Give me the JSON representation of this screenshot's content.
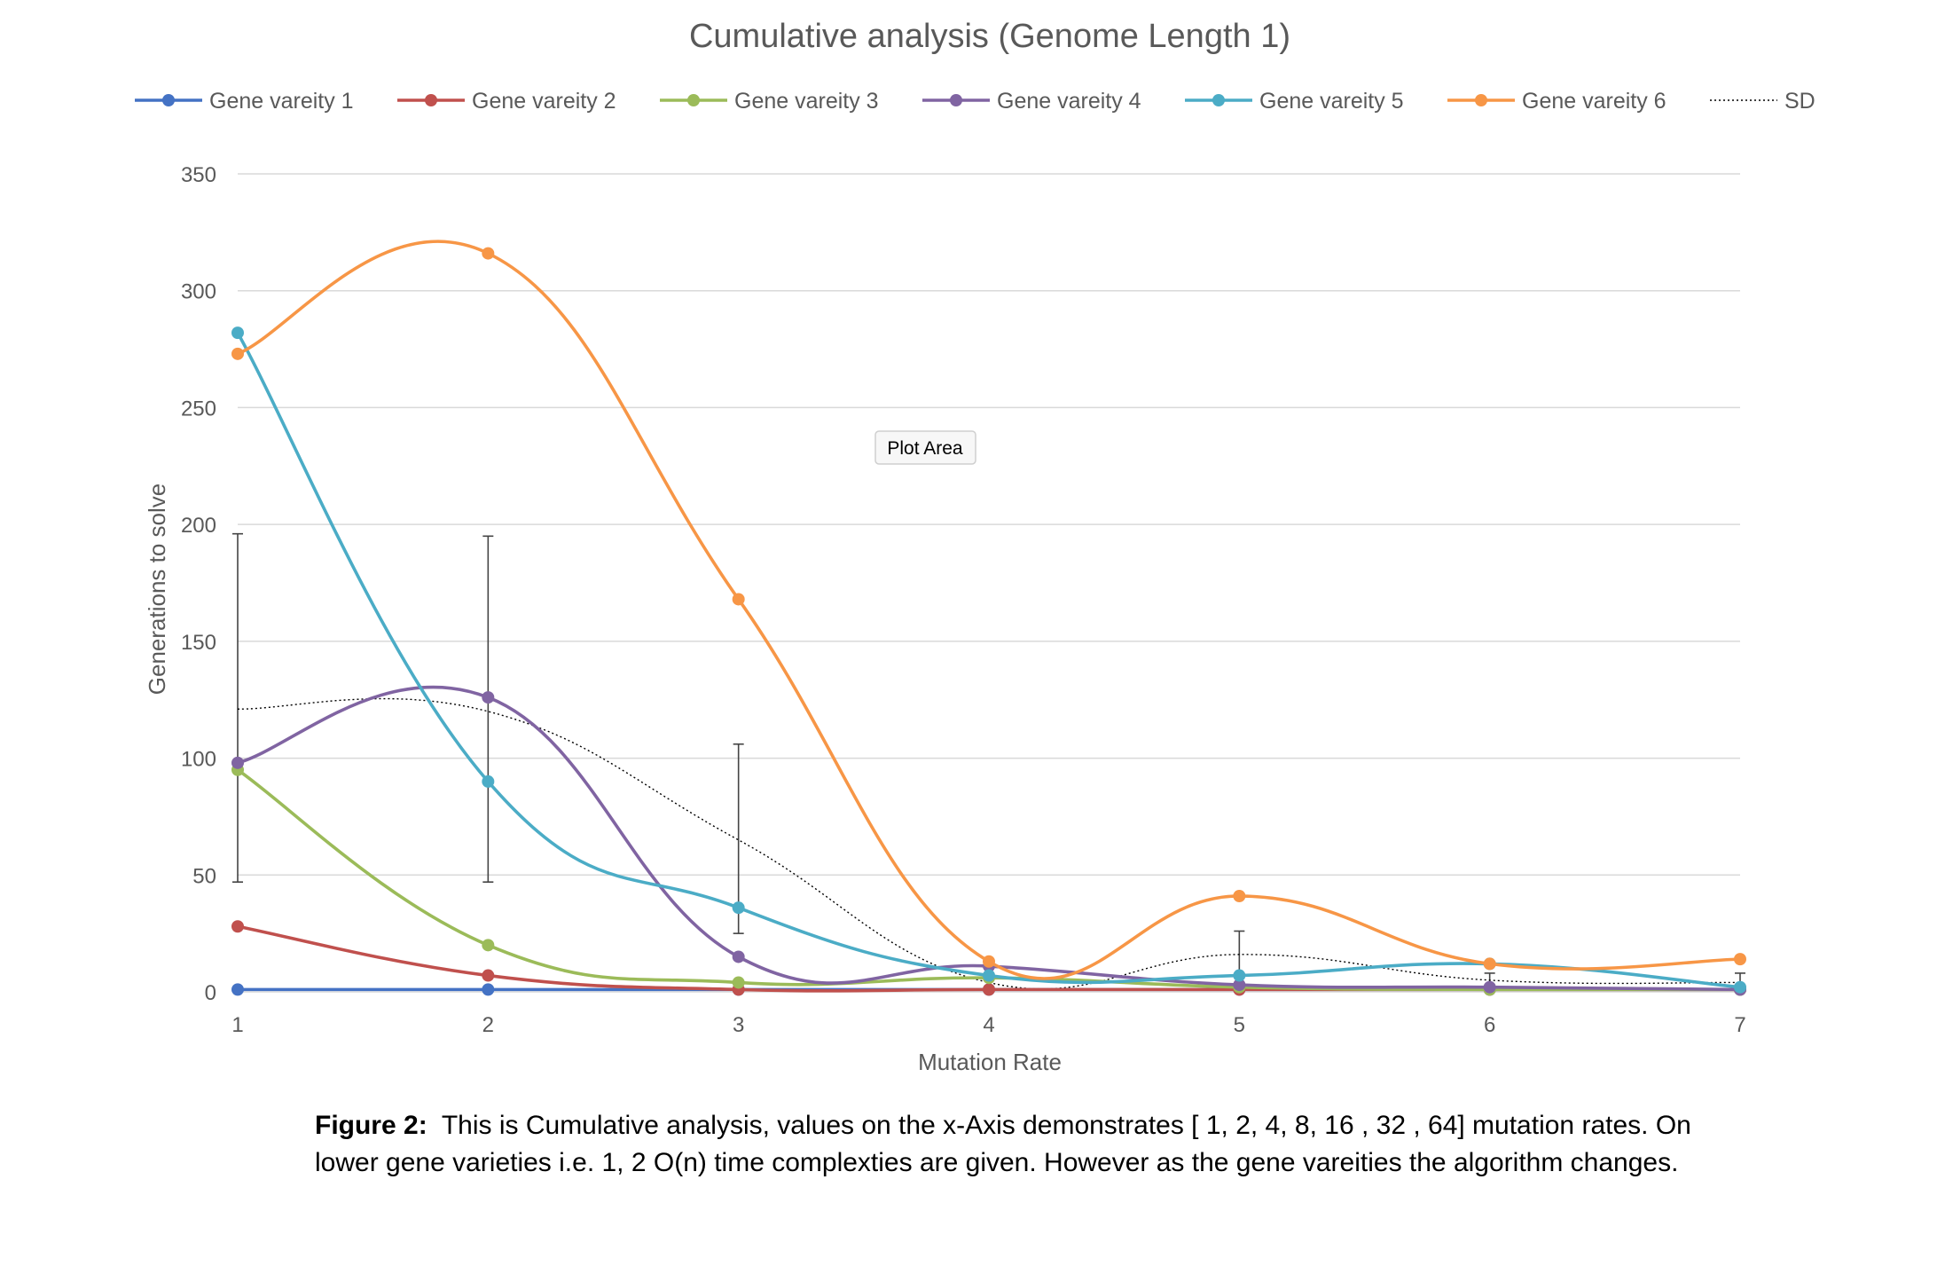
{
  "chart_data": {
    "type": "line",
    "title": "Cumulative analysis (Genome Length 1)",
    "xlabel": "Mutation Rate",
    "ylabel": "Generations to solve",
    "x": [
      1,
      2,
      3,
      4,
      5,
      6,
      7
    ],
    "xlim": [
      1,
      7
    ],
    "ylim": [
      0,
      350
    ],
    "yticks": [
      0,
      50,
      100,
      150,
      200,
      250,
      300,
      350
    ],
    "grid": true,
    "legend_position": "top",
    "smooth": true,
    "series": [
      {
        "name": "Gene vareity 1",
        "color": "#4472C4",
        "values": [
          1,
          1,
          1,
          1,
          1,
          1,
          1
        ]
      },
      {
        "name": "Gene vareity 2",
        "color": "#C0504D",
        "values": [
          28,
          7,
          1,
          1,
          1,
          1,
          1
        ]
      },
      {
        "name": "Gene vareity 3",
        "color": "#9BBB59",
        "values": [
          95,
          20,
          4,
          6,
          2,
          1,
          1
        ]
      },
      {
        "name": "Gene vareity 4",
        "color": "#8064A2",
        "values": [
          98,
          126,
          15,
          11,
          3,
          2,
          1
        ]
      },
      {
        "name": "Gene vareity 5",
        "color": "#4BACC6",
        "values": [
          282,
          90,
          36,
          7,
          7,
          12,
          2
        ]
      },
      {
        "name": "Gene vareity 6",
        "color": "#F79646",
        "values": [
          273,
          316,
          168,
          13,
          41,
          12,
          14
        ]
      }
    ],
    "sd": {
      "name": "SD",
      "color": "#000000",
      "values": [
        121,
        120,
        65,
        4,
        16,
        5,
        4
      ],
      "error_bars": [
        {
          "x": 1,
          "low": 47,
          "high": 196
        },
        {
          "x": 2,
          "low": 47,
          "high": 195
        },
        {
          "x": 3,
          "low": 25,
          "high": 106
        },
        {
          "x": 5,
          "low": 6,
          "high": 26
        },
        {
          "x": 6,
          "low": 0,
          "high": 8
        },
        {
          "x": 7,
          "low": 0,
          "high": 8
        }
      ]
    },
    "annotation": "Plot Area"
  },
  "caption": {
    "label": "Figure 2:",
    "line1": "This is Cumulative analysis, values on the x-Axis demonstrates [ 1, 2, 4, 8, 16 , 32 , 64] mutation rates. On",
    "line2": "lower gene varieties i.e. 1, 2 O(n) time complexties are given. However as the gene vareities the algorithm changes."
  }
}
